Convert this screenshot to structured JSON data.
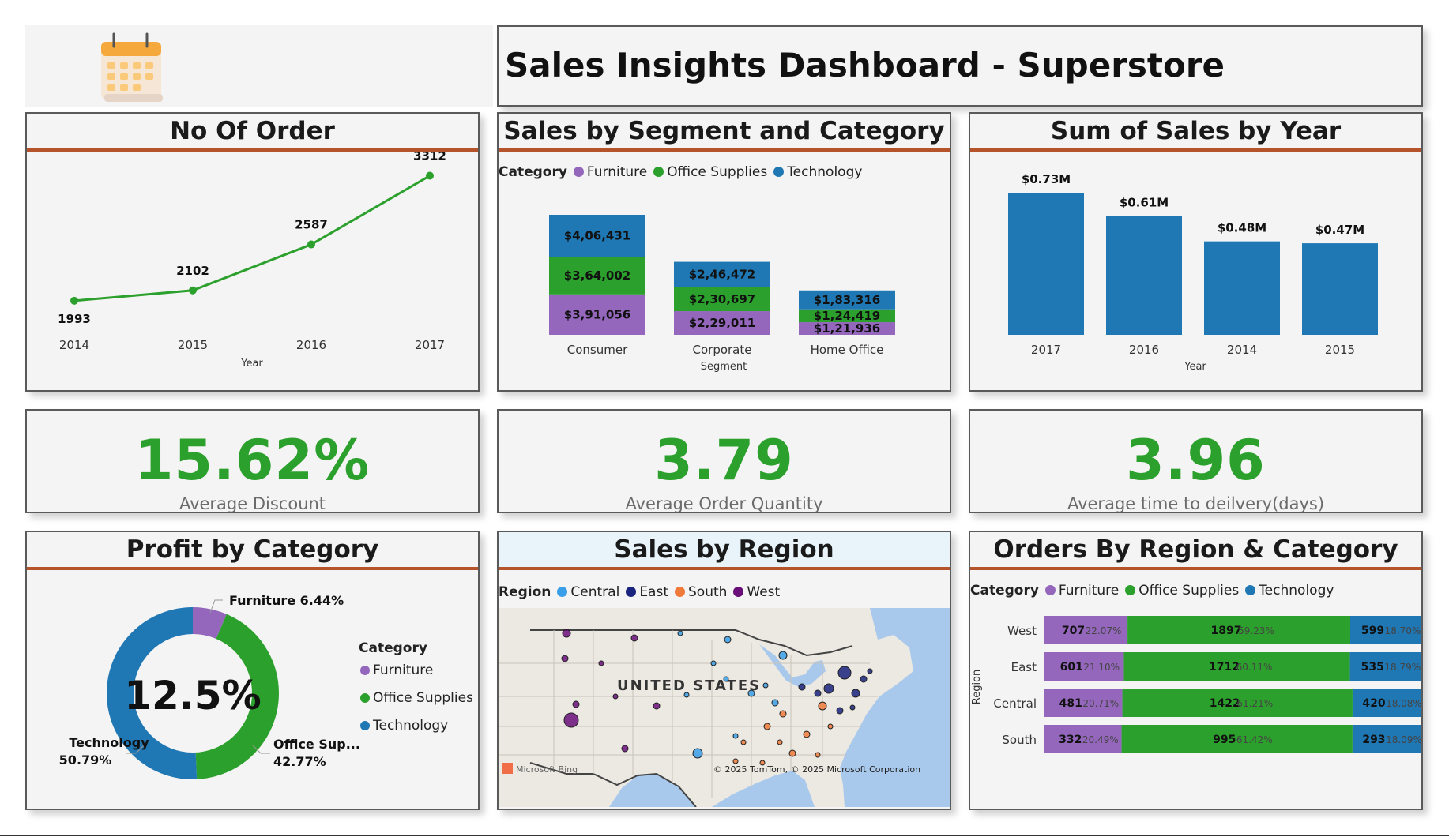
{
  "dashboard_title": "Sales Insights Dashboard - Superstore",
  "icons": {
    "header": "calendar-icon"
  },
  "colors": {
    "furniture": "#9467bd",
    "office_supplies": "#2ca02c",
    "technology": "#1f77b4",
    "central": "#3a9ee8",
    "east": "#1a237e",
    "south": "#f07a3a",
    "west": "#6a0f7a",
    "accent_line": "#b5532a",
    "kpi": "#2ca02c",
    "bar": "#1f77b4"
  },
  "panels": {
    "orders": {
      "title": "No Of Order"
    },
    "segment": {
      "title": "Sales by Segment and Category"
    },
    "year": {
      "title": "Sum of Sales by Year"
    },
    "profit": {
      "title": "Profit by Category"
    },
    "region": {
      "title": "Sales by Region"
    },
    "region_cat": {
      "title": "Orders By Region & Category"
    }
  },
  "kpis": [
    {
      "value": "15.62%",
      "label": "Average Discount"
    },
    {
      "value": "3.79",
      "label": "Average Order Quantity"
    },
    {
      "value": "3.96",
      "label": "Average time to  deilvery(days)"
    }
  ],
  "map": {
    "legend_title": "Region",
    "legend": [
      {
        "name": "Central",
        "color": "#3a9ee8"
      },
      {
        "name": "East",
        "color": "#1a237e"
      },
      {
        "name": "South",
        "color": "#f07a3a"
      },
      {
        "name": "West",
        "color": "#6a0f7a"
      }
    ],
    "country_label": "UNITED STATES",
    "bing_label": "Microsoft Bing",
    "copyright": "© 2025 TomTom, © 2025 Microsoft Corporation"
  },
  "chart_data": [
    {
      "type": "line",
      "xlabel": "Year",
      "x": [
        "2014",
        "2015",
        "2016",
        "2017"
      ],
      "series": [
        {
          "values": [
            1993,
            2102,
            2587,
            3312
          ]
        }
      ],
      "ylim": [
        1900,
        3400
      ]
    },
    {
      "type": "bar",
      "stacked": true,
      "xlabel": "Segment",
      "legend_title": "Category",
      "categories": [
        "Consumer",
        "Corporate",
        "Home Office"
      ],
      "series": [
        {
          "name": "Furniture",
          "values": [
            391056,
            229011,
            121936
          ],
          "labels": [
            "$3,91,056",
            "$2,29,011",
            "$1,21,936"
          ]
        },
        {
          "name": "Office Supplies",
          "values": [
            364002,
            230697,
            124419
          ],
          "labels": [
            "$3,64,002",
            "$2,30,697",
            "$1,24,419"
          ]
        },
        {
          "name": "Technology",
          "values": [
            406431,
            246472,
            183316
          ],
          "labels": [
            "$4,06,431",
            "$2,46,472",
            "$1,83,316"
          ]
        }
      ],
      "legend_placement": "top-left"
    },
    {
      "type": "bar",
      "xlabel": "Year",
      "categories": [
        "2017",
        "2016",
        "2014",
        "2015"
      ],
      "values": [
        0.73,
        0.61,
        0.48,
        0.47
      ],
      "labels": [
        "$0.73M",
        "$0.61M",
        "$0.48M",
        "$0.47M"
      ],
      "ylim": [
        0,
        0.8
      ]
    },
    {
      "type": "pie",
      "donut": true,
      "center_label": "12.5%",
      "legend_title": "Category",
      "slices": [
        {
          "name": "Furniture",
          "value": 6.44,
          "label": "Furniture 6.44%"
        },
        {
          "name": "Office Supplies",
          "value": 42.77,
          "label": "Office Sup...",
          "pct": "42.77%"
        },
        {
          "name": "Technology",
          "value": 50.79,
          "label": "Technology",
          "pct": "50.79%"
        }
      ],
      "legend": [
        "Furniture",
        "Office Supplies",
        "Technology"
      ],
      "legend_placement": "right"
    },
    {
      "type": "bar",
      "orientation": "horizontal",
      "stacked": "percent",
      "ylabel": "Region",
      "legend_title": "Category",
      "legend": [
        "Furniture",
        "Office Supplies",
        "Technology"
      ],
      "categories": [
        "West",
        "East",
        "Central",
        "South"
      ],
      "series": [
        {
          "name": "Furniture",
          "values": [
            707,
            601,
            481,
            332
          ],
          "pct": [
            "22.07%",
            "21.10%",
            "20.71%",
            "20.49%"
          ]
        },
        {
          "name": "Office Supplies",
          "values": [
            1897,
            1712,
            1422,
            995
          ],
          "pct": [
            "59.23%",
            "60.11%",
            "61.21%",
            "61.42%"
          ]
        },
        {
          "name": "Technology",
          "values": [
            599,
            535,
            420,
            293
          ],
          "pct": [
            "18.70%",
            "18.79%",
            "18.08%",
            "18.09%"
          ]
        }
      ]
    }
  ]
}
